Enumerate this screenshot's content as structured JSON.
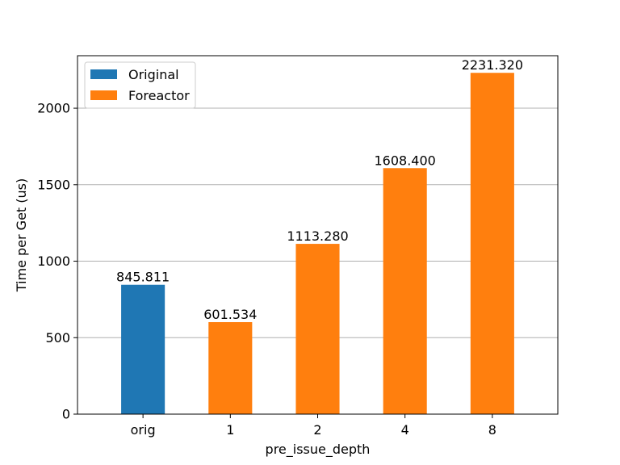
{
  "chart_data": {
    "type": "bar",
    "categories": [
      "orig",
      "1",
      "2",
      "4",
      "8"
    ],
    "values": [
      845.811,
      601.534,
      1113.28,
      1608.4,
      2231.32
    ],
    "value_labels": [
      "845.811",
      "601.534",
      "1113.280",
      "1608.400",
      "2231.320"
    ],
    "bar_series": [
      "Original",
      "Foreactor",
      "Foreactor",
      "Foreactor",
      "Foreactor"
    ],
    "series": [
      {
        "name": "Original",
        "color": "#1f77b4"
      },
      {
        "name": "Foreactor",
        "color": "#ff7f0e"
      }
    ],
    "title": "",
    "xlabel": "pre_issue_depth",
    "ylabel": "Time per Get (us)",
    "ylim": [
      0,
      2343.386
    ],
    "yticks": [
      0,
      500,
      1000,
      1500,
      2000
    ],
    "grid": "y",
    "legend": "top-left"
  }
}
